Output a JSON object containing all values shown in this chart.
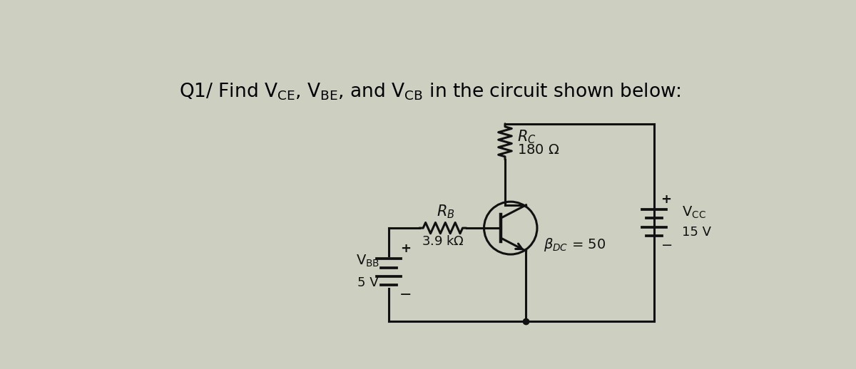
{
  "bg_color": "#cdd0c0",
  "title": "Q1/ Find V$_{\\mathrm{CE}}$, V$_{\\mathrm{BE}}$, and V$_{\\mathrm{CB}}$ in the circuit shown below:",
  "VBB_label": "V$_{\\mathrm{BB}}$",
  "VBB_value": "5 V",
  "RB_label": "R$_B$",
  "RB_value": "3.9 kΩ",
  "RC_label": "R$_C$",
  "RC_value": "180 Ω",
  "VCC_label": "V$_{\\mathrm{CC}}$",
  "VCC_value": "15 V",
  "beta_label": "$\\beta_{DC}$ = 50",
  "plus": "+",
  "minus": "−"
}
